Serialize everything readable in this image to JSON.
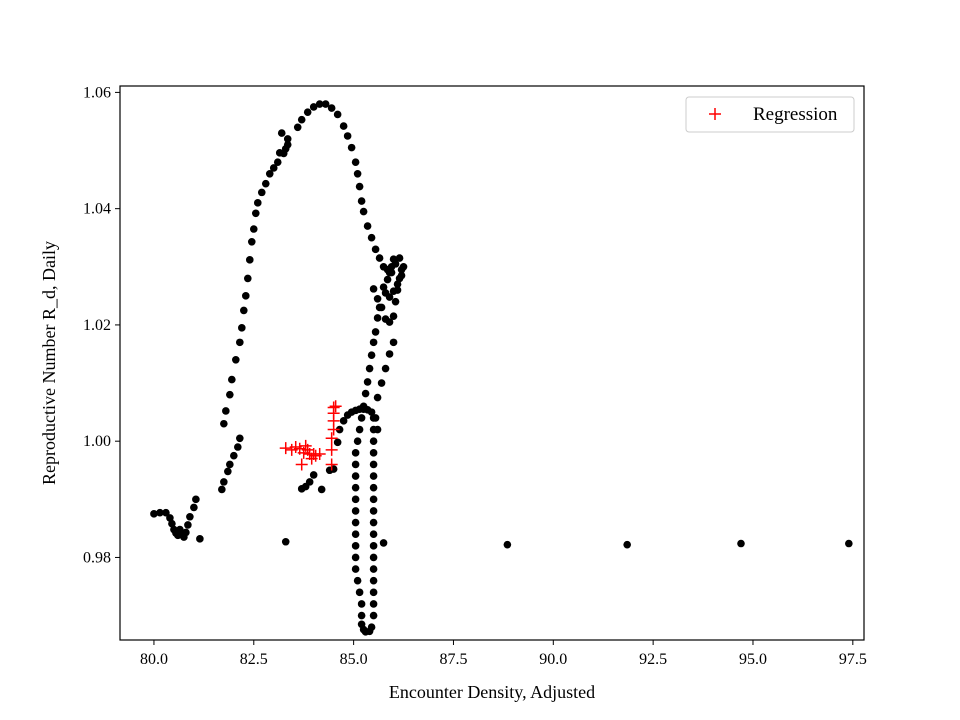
{
  "chart_data": {
    "type": "scatter",
    "xlabel": "Encounter Density, Adjusted",
    "ylabel": "Reproductive Number R_d, Daily",
    "xlim": [
      79.15,
      97.78
    ],
    "ylim": [
      0.9658,
      1.0611
    ],
    "x_ticks": [
      {
        "value": 80.0,
        "label": "80.0"
      },
      {
        "value": 82.5,
        "label": "82.5"
      },
      {
        "value": 85.0,
        "label": "85.0"
      },
      {
        "value": 87.5,
        "label": "87.5"
      },
      {
        "value": 90.0,
        "label": "90.0"
      },
      {
        "value": 92.5,
        "label": "92.5"
      },
      {
        "value": 95.0,
        "label": "95.0"
      },
      {
        "value": 97.5,
        "label": "97.5"
      }
    ],
    "y_ticks": [
      {
        "value": 0.98,
        "label": "0.98"
      },
      {
        "value": 1.0,
        "label": "1.00"
      },
      {
        "value": 1.02,
        "label": "1.02"
      },
      {
        "value": 1.04,
        "label": "1.04"
      },
      {
        "value": 1.06,
        "label": "1.06"
      }
    ],
    "grid": false,
    "legend": {
      "position": "top-right",
      "entries": [
        {
          "label": "Regression",
          "marker": "+",
          "color": "#ff0000"
        }
      ]
    },
    "series": [
      {
        "marker": "dot",
        "color": "#000000",
        "points": [
          [
            80.0,
            0.9875
          ],
          [
            80.15,
            0.9877
          ],
          [
            80.3,
            0.9877
          ],
          [
            80.4,
            0.9868
          ],
          [
            80.45,
            0.9858
          ],
          [
            80.5,
            0.9848
          ],
          [
            80.55,
            0.9842
          ],
          [
            80.6,
            0.9838
          ],
          [
            80.65,
            0.9848
          ],
          [
            80.7,
            0.984
          ],
          [
            80.75,
            0.9835
          ],
          [
            80.8,
            0.9843
          ],
          [
            80.85,
            0.9856
          ],
          [
            80.9,
            0.987
          ],
          [
            81.0,
            0.9886
          ],
          [
            81.05,
            0.99
          ],
          [
            81.15,
            0.9832
          ],
          [
            81.7,
            0.9917
          ],
          [
            81.75,
            0.993
          ],
          [
            81.85,
            0.9948
          ],
          [
            81.9,
            0.996
          ],
          [
            82.0,
            0.9975
          ],
          [
            82.1,
            0.999
          ],
          [
            82.15,
            1.0005
          ],
          [
            81.75,
            1.003
          ],
          [
            81.8,
            1.0052
          ],
          [
            81.9,
            1.008
          ],
          [
            81.95,
            1.0106
          ],
          [
            82.05,
            1.014
          ],
          [
            82.15,
            1.017
          ],
          [
            82.2,
            1.0195
          ],
          [
            82.25,
            1.0225
          ],
          [
            82.3,
            1.025
          ],
          [
            82.35,
            1.028
          ],
          [
            82.4,
            1.0312
          ],
          [
            82.45,
            1.0343
          ],
          [
            82.5,
            1.0365
          ],
          [
            82.55,
            1.0392
          ],
          [
            82.6,
            1.041
          ],
          [
            82.7,
            1.0428
          ],
          [
            82.8,
            1.0443
          ],
          [
            82.9,
            1.046
          ],
          [
            83.0,
            1.047
          ],
          [
            83.1,
            1.048
          ],
          [
            83.15,
            1.0496
          ],
          [
            83.25,
            1.0495
          ],
          [
            83.3,
            1.0503
          ],
          [
            83.35,
            1.051
          ],
          [
            83.35,
            1.052
          ],
          [
            83.2,
            1.053
          ],
          [
            83.6,
            1.054
          ],
          [
            83.7,
            1.0553
          ],
          [
            83.85,
            1.0566
          ],
          [
            84.0,
            1.0575
          ],
          [
            84.15,
            1.058
          ],
          [
            84.3,
            1.058
          ],
          [
            84.45,
            1.0573
          ],
          [
            84.6,
            1.0562
          ],
          [
            84.75,
            1.0542
          ],
          [
            84.85,
            1.0525
          ],
          [
            84.95,
            1.0505
          ],
          [
            85.05,
            1.048
          ],
          [
            85.1,
            1.046
          ],
          [
            85.15,
            1.0438
          ],
          [
            85.2,
            1.0413
          ],
          [
            85.25,
            1.0395
          ],
          [
            85.35,
            1.037
          ],
          [
            85.45,
            1.035
          ],
          [
            85.55,
            1.033
          ],
          [
            85.65,
            1.0315
          ],
          [
            85.75,
            1.03
          ],
          [
            85.85,
            1.0295
          ],
          [
            85.5,
            1.0262
          ],
          [
            85.6,
            1.0245
          ],
          [
            85.7,
            1.023
          ],
          [
            85.8,
            1.021
          ],
          [
            85.9,
            1.0205
          ],
          [
            86.0,
            1.0215
          ],
          [
            86.05,
            1.024
          ],
          [
            86.1,
            1.026
          ],
          [
            86.15,
            1.028
          ],
          [
            86.2,
            1.0295
          ],
          [
            86.25,
            1.03
          ],
          [
            86.2,
            1.0285
          ],
          [
            86.1,
            1.027
          ],
          [
            86.0,
            1.0258
          ],
          [
            85.9,
            1.0248
          ],
          [
            85.8,
            1.0255
          ],
          [
            85.75,
            1.0265
          ],
          [
            85.85,
            1.0278
          ],
          [
            85.95,
            1.029
          ],
          [
            86.05,
            1.0305
          ],
          [
            86.15,
            1.0315
          ],
          [
            86.0,
            1.0313
          ],
          [
            85.95,
            1.03
          ],
          [
            85.9,
            1.029
          ],
          [
            85.65,
            1.023
          ],
          [
            85.6,
            1.0212
          ],
          [
            85.55,
            1.0188
          ],
          [
            85.5,
            1.017
          ],
          [
            85.45,
            1.0148
          ],
          [
            85.4,
            1.0125
          ],
          [
            85.35,
            1.0102
          ],
          [
            85.3,
            1.0082
          ],
          [
            85.25,
            1.006
          ],
          [
            85.2,
            1.004
          ],
          [
            85.15,
            1.002
          ],
          [
            85.1,
            1.0
          ],
          [
            85.05,
            0.998
          ],
          [
            85.05,
            0.996
          ],
          [
            85.05,
            0.994
          ],
          [
            85.05,
            0.992
          ],
          [
            85.05,
            0.99
          ],
          [
            85.05,
            0.988
          ],
          [
            85.05,
            0.986
          ],
          [
            85.05,
            0.984
          ],
          [
            85.05,
            0.982
          ],
          [
            85.05,
            0.98
          ],
          [
            85.05,
            0.978
          ],
          [
            85.1,
            0.976
          ],
          [
            85.15,
            0.974
          ],
          [
            85.2,
            0.972
          ],
          [
            85.2,
            0.97
          ],
          [
            85.2,
            0.9685
          ],
          [
            85.25,
            0.9676
          ],
          [
            85.3,
            0.9672
          ],
          [
            85.4,
            0.9673
          ],
          [
            85.45,
            0.968
          ],
          [
            85.5,
            0.97
          ],
          [
            85.5,
            0.972
          ],
          [
            85.5,
            0.974
          ],
          [
            85.5,
            0.976
          ],
          [
            85.5,
            0.978
          ],
          [
            85.5,
            0.98
          ],
          [
            85.5,
            0.982
          ],
          [
            85.5,
            0.984
          ],
          [
            85.5,
            0.986
          ],
          [
            85.5,
            0.988
          ],
          [
            85.5,
            0.99
          ],
          [
            85.5,
            0.992
          ],
          [
            85.5,
            0.994
          ],
          [
            85.5,
            0.996
          ],
          [
            85.5,
            0.998
          ],
          [
            85.5,
            1.0
          ],
          [
            85.5,
            1.002
          ],
          [
            85.5,
            1.004
          ],
          [
            85.6,
            1.0075
          ],
          [
            85.7,
            1.01
          ],
          [
            85.8,
            1.0125
          ],
          [
            85.9,
            1.015
          ],
          [
            86.0,
            1.017
          ],
          [
            83.7,
            0.9918
          ],
          [
            83.8,
            0.9922
          ],
          [
            83.9,
            0.993
          ],
          [
            84.0,
            0.9942
          ],
          [
            84.2,
            0.9917
          ],
          [
            84.4,
            0.995
          ],
          [
            84.5,
            0.9952
          ],
          [
            84.6,
            0.9998
          ],
          [
            84.65,
            1.002
          ],
          [
            84.75,
            1.0035
          ],
          [
            84.85,
            1.0045
          ],
          [
            84.95,
            1.005
          ],
          [
            85.05,
            1.0053
          ],
          [
            85.15,
            1.0055
          ],
          [
            85.25,
            1.0055
          ],
          [
            85.35,
            1.0054
          ],
          [
            85.45,
            1.005
          ],
          [
            85.55,
            1.004
          ],
          [
            85.6,
            1.002
          ],
          [
            83.3,
            0.9827
          ],
          [
            85.75,
            0.9825
          ],
          [
            88.85,
            0.9822
          ],
          [
            91.85,
            0.9822
          ],
          [
            94.7,
            0.9824
          ],
          [
            97.4,
            0.9824
          ]
        ]
      },
      {
        "name": "Regression",
        "marker": "+",
        "color": "#ff0000",
        "points": [
          [
            83.3,
            0.9988
          ],
          [
            83.45,
            0.9985
          ],
          [
            83.55,
            0.999
          ],
          [
            83.65,
            0.9987
          ],
          [
            83.7,
            0.996
          ],
          [
            83.75,
            0.998
          ],
          [
            83.8,
            0.9992
          ],
          [
            83.85,
            0.9985
          ],
          [
            83.9,
            0.9978
          ],
          [
            83.95,
            0.997
          ],
          [
            84.0,
            0.9978
          ],
          [
            84.05,
            0.9975
          ],
          [
            84.15,
            0.9978
          ],
          [
            84.45,
            0.996
          ],
          [
            84.45,
            0.9985
          ],
          [
            84.45,
            1.0005
          ],
          [
            84.5,
            1.002
          ],
          [
            84.5,
            1.0035
          ],
          [
            84.5,
            1.0048
          ],
          [
            84.5,
            1.0058
          ],
          [
            84.55,
            1.006
          ]
        ]
      }
    ]
  }
}
